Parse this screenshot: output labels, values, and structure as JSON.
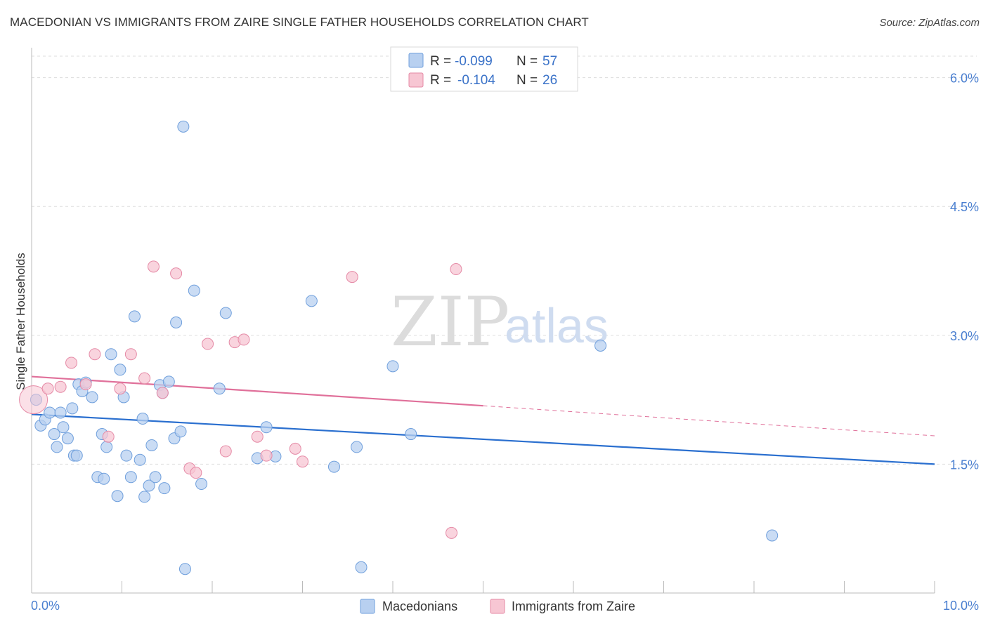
{
  "title": "MACEDONIAN VS IMMIGRANTS FROM ZAIRE SINGLE FATHER HOUSEHOLDS CORRELATION CHART",
  "source": "Source: ZipAtlas.com",
  "colors": {
    "blue_fill": "#b8d0f0",
    "blue_stroke": "#6f9fdc",
    "blue_line": "#2a6fcf",
    "pink_fill": "#f7c6d3",
    "pink_stroke": "#e58aa6",
    "pink_line": "#e0709a",
    "axis_text": "#4a7fd0",
    "grid": "#dddddd"
  },
  "legend": {
    "rows": [
      {
        "r_label": "R =",
        "r_value": "-0.099",
        "n_label": "N =",
        "n_value": "57"
      },
      {
        "r_label": "R =",
        "r_value": "-0.104",
        "n_label": "N =",
        "n_value": "26"
      }
    ]
  },
  "watermark": {
    "zip": "ZIP",
    "atlas": "atlas"
  },
  "chart_data": {
    "type": "scatter",
    "title": "MACEDONIAN VS IMMIGRANTS FROM ZAIRE SINGLE FATHER HOUSEHOLDS CORRELATION CHART",
    "xlabel": "",
    "ylabel": "Single Father Households",
    "xlim": [
      0,
      10
    ],
    "ylim": [
      0,
      6.25
    ],
    "x_ticks_labeled": [
      "0.0%",
      "10.0%"
    ],
    "y_ticks": [
      1.5,
      3.0,
      4.5,
      6.0
    ],
    "y_tick_labels": [
      "1.5%",
      "3.0%",
      "4.5%",
      "6.0%"
    ],
    "grid": true,
    "legend_position": "bottom-center",
    "series": [
      {
        "name": "Macedonians",
        "color": "blue",
        "trend": {
          "x0": 0,
          "y0": 2.08,
          "x1": 10,
          "y1": 1.5
        },
        "points": [
          [
            0.05,
            2.25
          ],
          [
            0.1,
            1.95
          ],
          [
            0.15,
            2.02
          ],
          [
            0.2,
            2.1
          ],
          [
            0.25,
            1.85
          ],
          [
            0.28,
            1.7
          ],
          [
            0.32,
            2.1
          ],
          [
            0.35,
            1.93
          ],
          [
            0.4,
            1.8
          ],
          [
            0.45,
            2.15
          ],
          [
            0.47,
            1.6
          ],
          [
            0.52,
            2.43
          ],
          [
            0.56,
            2.35
          ],
          [
            0.6,
            2.45
          ],
          [
            0.67,
            2.28
          ],
          [
            0.73,
            1.35
          ],
          [
            0.78,
            1.85
          ],
          [
            0.8,
            1.33
          ],
          [
            0.83,
            1.7
          ],
          [
            0.88,
            2.78
          ],
          [
            0.95,
            1.13
          ],
          [
            0.98,
            2.6
          ],
          [
            1.02,
            2.28
          ],
          [
            1.05,
            1.6
          ],
          [
            1.1,
            1.35
          ],
          [
            1.14,
            3.22
          ],
          [
            1.2,
            1.55
          ],
          [
            1.23,
            2.03
          ],
          [
            1.25,
            1.12
          ],
          [
            1.3,
            1.25
          ],
          [
            1.33,
            1.72
          ],
          [
            1.37,
            1.35
          ],
          [
            1.42,
            2.42
          ],
          [
            1.47,
            1.22
          ],
          [
            1.52,
            2.46
          ],
          [
            1.58,
            1.8
          ],
          [
            1.6,
            3.15
          ],
          [
            1.65,
            1.88
          ],
          [
            1.68,
            5.43
          ],
          [
            1.7,
            0.28
          ],
          [
            1.8,
            3.52
          ],
          [
            1.88,
            1.27
          ],
          [
            2.08,
            2.38
          ],
          [
            2.15,
            3.26
          ],
          [
            2.5,
            1.57
          ],
          [
            2.6,
            1.93
          ],
          [
            2.7,
            1.59
          ],
          [
            3.1,
            3.4
          ],
          [
            3.35,
            1.47
          ],
          [
            3.6,
            1.7
          ],
          [
            3.65,
            0.3
          ],
          [
            4.0,
            2.64
          ],
          [
            4.2,
            1.85
          ],
          [
            6.3,
            2.88
          ],
          [
            0.5,
            1.6
          ],
          [
            1.45,
            2.33
          ],
          [
            8.2,
            0.67
          ]
        ]
      },
      {
        "name": "Immigrants from Zaire",
        "color": "pink",
        "trend": {
          "x0": 0,
          "y0": 2.52,
          "x1": 5,
          "y1": 2.18
        },
        "trend_dashed": {
          "x0": 5,
          "y0": 2.18,
          "x1": 10,
          "y1": 1.83
        },
        "points": [
          [
            0.02,
            2.25
          ],
          [
            0.18,
            2.38
          ],
          [
            0.32,
            2.4
          ],
          [
            0.44,
            2.68
          ],
          [
            0.6,
            2.43
          ],
          [
            0.7,
            2.78
          ],
          [
            0.85,
            1.82
          ],
          [
            0.98,
            2.38
          ],
          [
            1.1,
            2.78
          ],
          [
            1.25,
            2.5
          ],
          [
            1.35,
            3.8
          ],
          [
            1.45,
            2.33
          ],
          [
            1.6,
            3.72
          ],
          [
            1.75,
            1.45
          ],
          [
            1.82,
            1.4
          ],
          [
            1.95,
            2.9
          ],
          [
            2.15,
            1.65
          ],
          [
            2.25,
            2.92
          ],
          [
            2.35,
            2.95
          ],
          [
            2.5,
            1.82
          ],
          [
            2.6,
            1.6
          ],
          [
            2.92,
            1.68
          ],
          [
            3.0,
            1.53
          ],
          [
            3.55,
            3.68
          ],
          [
            4.7,
            3.77
          ],
          [
            4.65,
            0.7
          ]
        ]
      }
    ]
  }
}
